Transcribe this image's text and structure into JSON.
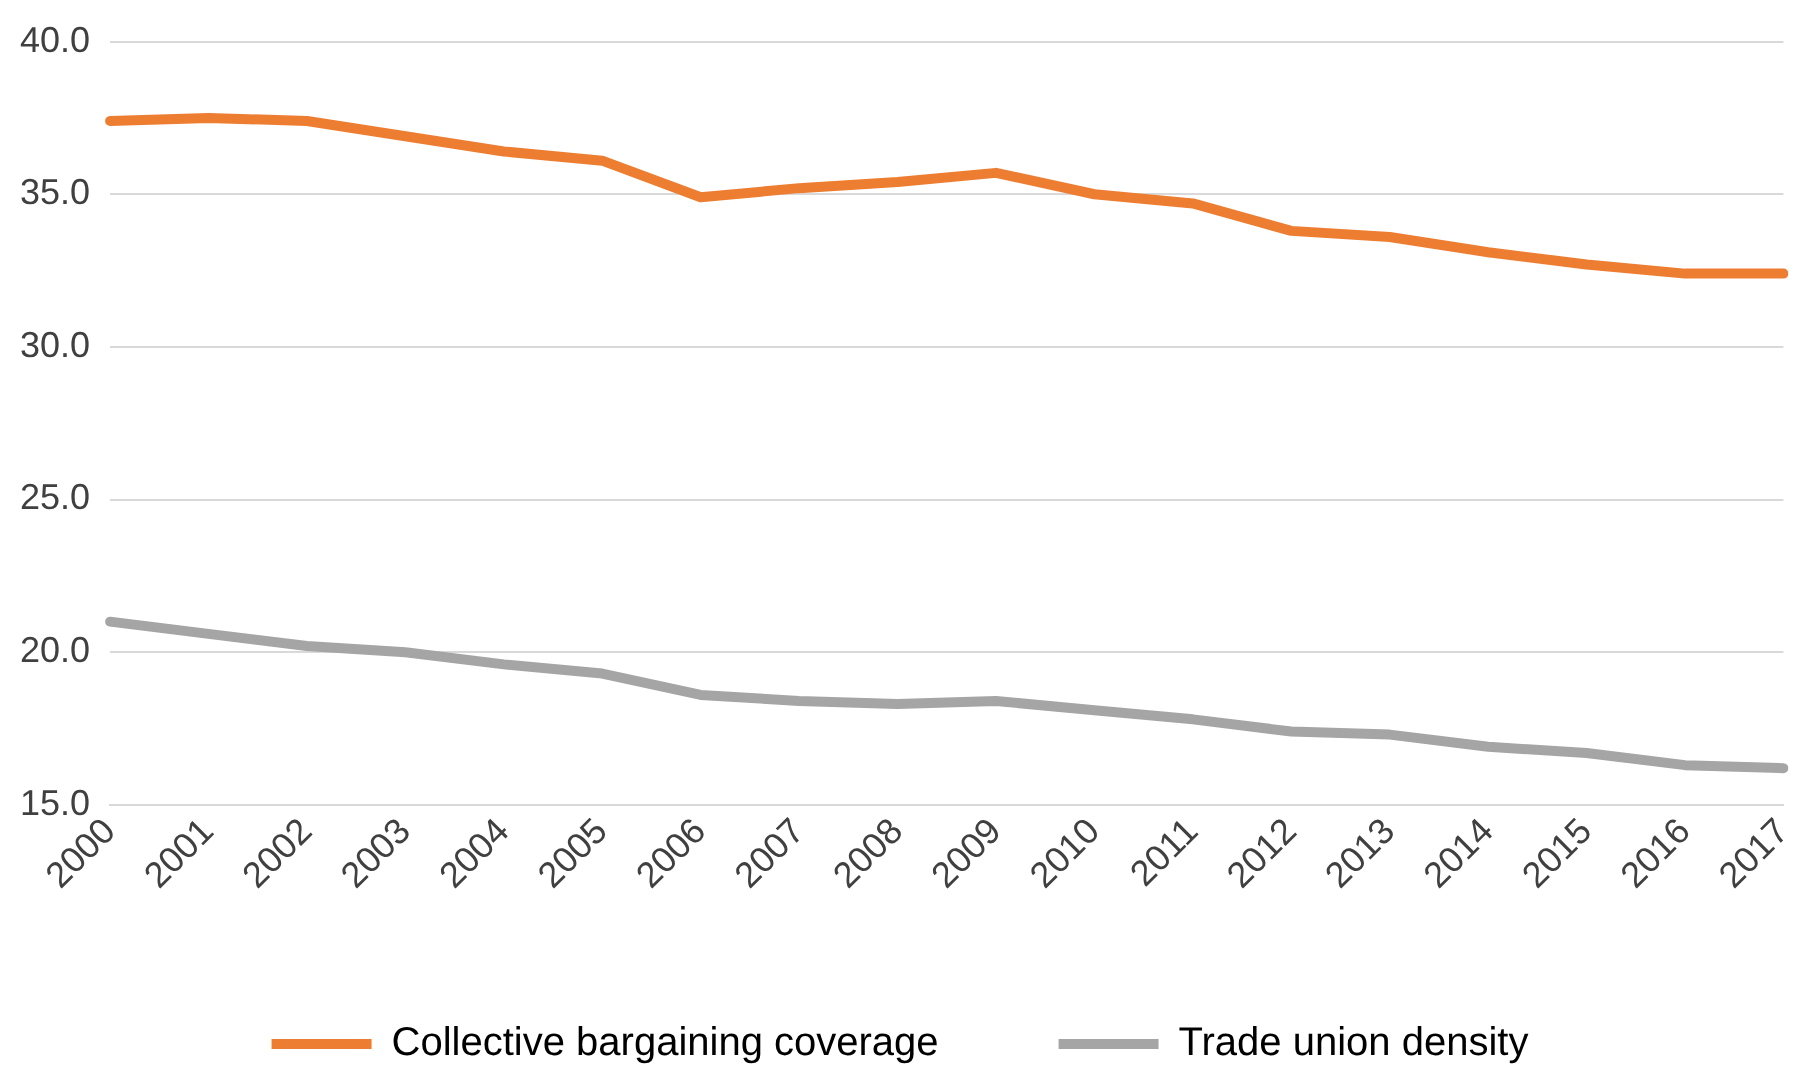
{
  "chart_data": {
    "type": "line",
    "categories": [
      "2000",
      "2001",
      "2002",
      "2003",
      "2004",
      "2005",
      "2006",
      "2007",
      "2008",
      "2009",
      "2010",
      "2011",
      "2012",
      "2013",
      "2014",
      "2015",
      "2016",
      "2017"
    ],
    "series": [
      {
        "name": "Collective bargaining coverage",
        "color": "#ed7d31",
        "values": [
          37.4,
          37.5,
          37.4,
          36.9,
          36.4,
          36.1,
          34.9,
          35.2,
          35.4,
          35.7,
          35.0,
          34.7,
          33.8,
          33.6,
          33.1,
          32.7,
          32.4,
          32.4
        ]
      },
      {
        "name": "Trade union density",
        "color": "#a5a5a5",
        "values": [
          21.0,
          20.6,
          20.2,
          20.0,
          19.6,
          19.3,
          18.6,
          18.4,
          18.3,
          18.4,
          18.1,
          17.8,
          17.4,
          17.3,
          16.9,
          16.7,
          16.3,
          16.2
        ]
      }
    ],
    "ylim": [
      15,
      40
    ],
    "yticks": [
      {
        "value": 15,
        "label": "15.0"
      },
      {
        "value": 20,
        "label": "20.0"
      },
      {
        "value": 25,
        "label": "25.0"
      },
      {
        "value": 30,
        "label": "30.0"
      },
      {
        "value": 35,
        "label": "35.0"
      },
      {
        "value": 40,
        "label": "40.0"
      }
    ],
    "grid": "y",
    "legend": "bottom",
    "marker": "none",
    "line_style": "solid"
  }
}
